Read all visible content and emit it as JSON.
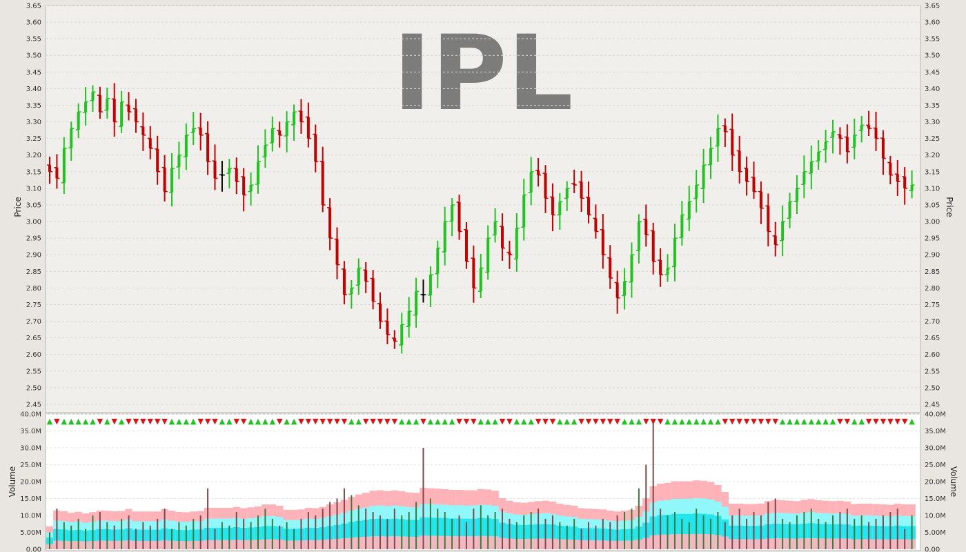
{
  "chart_data": [
    {
      "type": "ohlc",
      "title": "IPL",
      "ylabel": "Price",
      "ylim": [
        2.425,
        3.65
      ],
      "yticks": [
        "3.65",
        "3.60",
        "3.55",
        "3.50",
        "3.45",
        "3.40",
        "3.35",
        "3.30",
        "3.25",
        "3.20",
        "3.15",
        "3.10",
        "3.05",
        "3.00",
        "2.95",
        "2.90",
        "2.85",
        "2.80",
        "2.75",
        "2.70",
        "2.65",
        "2.60",
        "2.55",
        "2.50",
        "2.45"
      ],
      "grid": true,
      "colors": {
        "up": "#1fc41f",
        "down": "#c40000",
        "unchanged": "#000000"
      },
      "close": [
        3.15,
        3.13,
        3.22,
        3.28,
        3.33,
        3.36,
        3.39,
        3.33,
        3.37,
        3.3,
        3.36,
        3.33,
        3.3,
        3.26,
        3.22,
        3.15,
        3.09,
        3.16,
        3.2,
        3.26,
        3.28,
        3.26,
        3.18,
        3.13,
        3.14,
        3.16,
        3.12,
        3.08,
        3.11,
        3.18,
        3.23,
        3.28,
        3.26,
        3.3,
        3.33,
        3.3,
        3.25,
        3.18,
        3.05,
        2.95,
        2.87,
        2.78,
        2.8,
        2.86,
        2.82,
        2.76,
        2.7,
        2.66,
        2.64,
        2.69,
        2.73,
        2.79,
        2.78,
        2.84,
        2.92,
        3.0,
        3.05,
        2.97,
        2.88,
        2.8,
        2.86,
        2.95,
        3.0,
        2.92,
        2.9,
        2.98,
        3.08,
        3.15,
        3.14,
        3.07,
        3.02,
        3.06,
        3.1,
        3.11,
        3.07,
        3.02,
        2.97,
        2.9,
        2.83,
        2.77,
        2.82,
        2.9,
        3.0,
        2.96,
        2.88,
        2.84,
        2.86,
        2.95,
        3.02,
        3.06,
        3.11,
        3.17,
        3.22,
        3.28,
        3.27,
        3.2,
        3.15,
        3.12,
        3.09,
        3.04,
        2.97,
        2.93,
        3.0,
        3.06,
        3.1,
        3.15,
        3.18,
        3.21,
        3.24,
        3.27,
        3.25,
        3.21,
        3.26,
        3.29,
        3.28,
        3.25,
        3.19,
        3.14,
        3.12,
        3.1,
        3.11
      ],
      "volume_series": [
        {
          "name": "Volume",
          "type": "bar",
          "ylim": [
            0,
            40
          ],
          "unit": "M"
        }
      ],
      "volume_yticks": [
        "40.0M",
        "35.0M",
        "30.0M",
        "25.0M",
        "20.0M",
        "15.0M",
        "10.0M",
        "5.00M",
        "0.00"
      ],
      "volume_ylabel": "Volume",
      "volume_values": [
        5,
        12,
        8,
        7,
        9,
        6,
        10,
        11,
        8,
        7,
        9,
        10,
        6,
        8,
        7,
        9,
        12,
        6,
        8,
        7,
        9,
        10,
        18,
        6,
        8,
        7,
        11,
        9,
        8,
        10,
        12,
        9,
        7,
        8,
        6,
        9,
        11,
        10,
        12,
        14,
        15,
        18,
        16,
        13,
        12,
        11,
        10,
        9,
        12,
        10,
        11,
        14,
        30,
        15,
        12,
        11,
        9,
        10,
        8,
        12,
        13,
        10,
        11,
        12,
        9,
        8,
        10,
        11,
        12,
        9,
        10,
        8,
        7,
        9,
        6,
        8,
        7,
        9,
        8,
        10,
        11,
        12,
        18,
        25,
        38,
        12,
        10,
        11,
        9,
        8,
        12,
        10,
        9,
        11,
        8,
        10,
        12,
        9,
        11,
        10,
        14,
        15,
        9,
        8,
        10,
        11,
        12,
        9,
        8,
        10,
        11,
        12,
        9,
        10,
        8,
        9,
        10,
        11,
        12,
        6,
        10
      ]
    }
  ]
}
